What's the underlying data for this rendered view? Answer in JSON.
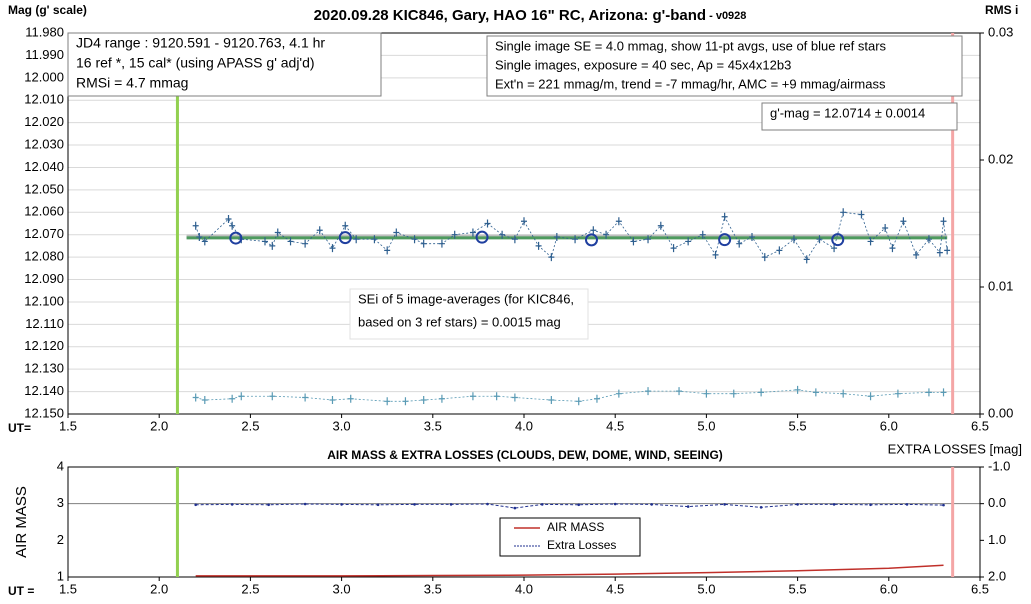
{
  "chart_data": [
    {
      "type": "line",
      "title": "2020.09.28 KIC846, Gary, HAO 16\" RC, Arizona: g'-band",
      "subtitle": " - v0928",
      "ylabel": "Mag (g' scale)",
      "y2label": "RMS i",
      "xlabel": "UT=",
      "xlim": [
        1.5,
        6.5
      ],
      "xticks": [
        1.5,
        {
          "value": 2.0,
          "label": "2.0"
        },
        2.5,
        {
          "value": 3.0,
          "label": "3.0"
        },
        3.5,
        {
          "value": 4.0,
          "label": "4.0"
        },
        4.5,
        {
          "value": 5.0,
          "label": "5.0"
        },
        5.5,
        {
          "value": 6.0,
          "label": "6.0"
        },
        6.5
      ],
      "ylim": [
        12.15,
        11.98
      ],
      "yticks": [
        {
          "value": 11.98,
          "label": "11.980"
        },
        {
          "value": 11.99,
          "label": "11.990"
        },
        {
          "value": 12.0,
          "label": "12.000"
        },
        {
          "value": 12.01,
          "label": "12.010"
        },
        {
          "value": 12.02,
          "label": "12.020"
        },
        {
          "value": 12.03,
          "label": "12.030"
        },
        {
          "value": 12.04,
          "label": "12.040"
        },
        {
          "value": 12.05,
          "label": "12.050"
        },
        {
          "value": 12.06,
          "label": "12.060"
        },
        {
          "value": 12.07,
          "label": "12.070"
        },
        {
          "value": 12.08,
          "label": "12.080"
        },
        {
          "value": 12.09,
          "label": "12.090"
        },
        {
          "value": 12.1,
          "label": "12.100"
        },
        {
          "value": 12.11,
          "label": "12.110"
        },
        {
          "value": 12.12,
          "label": "12.120"
        },
        {
          "value": 12.13,
          "label": "12.130"
        },
        {
          "value": 12.14,
          "label": "12.140"
        },
        {
          "value": 12.15,
          "label": "12.150"
        }
      ],
      "y2lim": [
        0,
        0.03
      ],
      "y2ticks": [
        {
          "value": 0,
          "label": "0.00"
        },
        0.01,
        0.02,
        0.03
      ],
      "grid": true,
      "vlines": [
        {
          "value": 2.1,
          "color": "#92d050"
        },
        {
          "value": 6.35,
          "color": "#f4a6a6"
        }
      ],
      "hlines": [
        {
          "value": 12.0706,
          "color": "#bfbfbf"
        },
        {
          "value": 12.0714,
          "color": "#4e9a5e"
        }
      ],
      "series": [
        {
          "style": "cross-dashed",
          "color": "#2e5f8f",
          "x": [
            2.2,
            2.22,
            2.25,
            2.38,
            2.4,
            2.45,
            2.58,
            2.62,
            2.65,
            2.72,
            2.8,
            2.88,
            2.95,
            3.02,
            3.08,
            3.18,
            3.25,
            3.3,
            3.4,
            3.45,
            3.55,
            3.62,
            3.72,
            3.8,
            3.88,
            3.95,
            4.0,
            4.08,
            4.15,
            4.18,
            4.28,
            4.38,
            4.45,
            4.52,
            4.6,
            4.68,
            4.75,
            4.82,
            4.9,
            4.98,
            5.05,
            5.1,
            5.18,
            5.25,
            5.32,
            5.4,
            5.48,
            5.55,
            5.62,
            5.7,
            5.75,
            5.85,
            5.9,
            5.98,
            6.02,
            6.08,
            6.15,
            6.22,
            6.28,
            6.3,
            6.32
          ],
          "values": [
            12.066,
            12.071,
            12.073,
            12.063,
            12.066,
            12.072,
            12.073,
            12.075,
            12.069,
            12.073,
            12.074,
            12.068,
            12.076,
            12.066,
            12.072,
            12.072,
            12.077,
            12.069,
            12.072,
            12.074,
            12.074,
            12.07,
            12.069,
            12.065,
            12.07,
            12.072,
            12.064,
            12.075,
            12.08,
            12.071,
            12.072,
            12.068,
            12.07,
            12.064,
            12.073,
            12.072,
            12.066,
            12.076,
            12.073,
            12.07,
            12.079,
            12.062,
            12.074,
            12.071,
            12.08,
            12.077,
            12.072,
            12.081,
            12.072,
            12.076,
            12.06,
            12.061,
            12.073,
            12.067,
            12.076,
            12.064,
            12.079,
            12.072,
            12.078,
            12.064,
            12.077
          ]
        },
        {
          "style": "circle",
          "color": "#1f3f9f",
          "x": [
            2.42,
            3.02,
            3.77,
            4.37,
            5.1,
            5.72
          ],
          "values": [
            12.0715,
            12.0713,
            12.0711,
            12.0723,
            12.0722,
            12.0722
          ]
        },
        {
          "style": "cross-dashed",
          "color": "#5a9bb5",
          "axis": "y2",
          "x": [
            2.2,
            2.25,
            2.4,
            2.45,
            2.62,
            2.8,
            2.95,
            3.05,
            3.25,
            3.35,
            3.45,
            3.55,
            3.72,
            3.85,
            3.95,
            4.15,
            4.3,
            4.4,
            4.52,
            4.68,
            4.85,
            5.0,
            5.15,
            5.3,
            5.5,
            5.6,
            5.75,
            5.9,
            6.05,
            6.22,
            6.3
          ],
          "values": [
            0.0013,
            0.0011,
            0.0012,
            0.0014,
            0.0014,
            0.0013,
            0.0011,
            0.0012,
            0.001,
            0.001,
            0.0011,
            0.0012,
            0.0014,
            0.0014,
            0.0013,
            0.0011,
            0.001,
            0.0012,
            0.0016,
            0.0018,
            0.0018,
            0.0016,
            0.0016,
            0.0017,
            0.0019,
            0.0017,
            0.0016,
            0.0014,
            0.0016,
            0.0017,
            0.0017
          ]
        }
      ],
      "annotations": [
        {
          "lines": [
            "JD4 range : 9120.591 - 9120.763,  4.1  hr",
            "16 ref *, 15 cal* (using APASS g' adj'd)",
            "RMSi = 4.7 mmag"
          ]
        },
        {
          "lines": [
            "Single image SE = 4.0 mmag, show  11-pt avgs, use of blue ref stars",
            "Single images, exposure = 40 sec, Ap = 45x4x12b3",
            "Ext'n = 221 mmag/m, trend =  -7 mmag/hr, AMC = +9 mmag/airmass"
          ]
        },
        {
          "lines": [
            "g'-mag = 12.0714 ± 0.0014"
          ]
        },
        {
          "lines": [
            "SEi of 5 image-averages (for KIC846,",
            "based on 3 ref stars) = 0.0015 mag"
          ]
        }
      ]
    },
    {
      "type": "line",
      "title": "AIR MASS & EXTRA LOSSES (CLOUDS, DEW, DOME, WIND, SEEING)",
      "ylabel": "AIR MASS",
      "y2label": "EXTRA LOSSES [mag]",
      "xlabel": "UT =",
      "xlim": [
        1.5,
        6.5
      ],
      "xticks": [
        1.5,
        {
          "value": 2.0,
          "label": "2.0"
        },
        2.5,
        {
          "value": 3.0,
          "label": "3.0"
        },
        3.5,
        {
          "value": 4.0,
          "label": "4.0"
        },
        4.5,
        {
          "value": 5.0,
          "label": "5.0"
        },
        5.5,
        {
          "value": 6.0,
          "label": "6.0"
        },
        6.5
      ],
      "ylim": [
        1,
        4
      ],
      "yticks": [
        1,
        2,
        3,
        4
      ],
      "y2lim": [
        2,
        -1
      ],
      "y2ticks": [
        {
          "value": 2,
          "label": "2.0"
        },
        {
          "value": 1,
          "label": "1.0"
        },
        {
          "value": 0,
          "label": "0.0"
        },
        {
          "value": -1,
          "label": "-1.0"
        }
      ],
      "grid": false,
      "gridlines": [
        3
      ],
      "vlines": [
        {
          "value": 2.1,
          "color": "#92d050"
        },
        {
          "value": 6.35,
          "color": "#f4a6a6"
        }
      ],
      "series": [
        {
          "name": "AIR MASS",
          "style": "line",
          "color": "#c0302a",
          "x": [
            2.2,
            2.5,
            3.0,
            3.5,
            4.0,
            4.5,
            5.0,
            5.5,
            6.0,
            6.3
          ],
          "values": [
            1.03,
            1.03,
            1.03,
            1.04,
            1.05,
            1.08,
            1.12,
            1.17,
            1.24,
            1.32
          ]
        },
        {
          "name": "Extra Losses",
          "style": "dot-dashed",
          "color": "#1f2f8f",
          "axis": "y2",
          "x": [
            2.2,
            2.4,
            2.6,
            2.8,
            3.0,
            3.2,
            3.4,
            3.6,
            3.8,
            3.95,
            4.1,
            4.3,
            4.5,
            4.7,
            4.9,
            5.1,
            5.3,
            5.5,
            5.7,
            5.9,
            6.1,
            6.3
          ],
          "values": [
            0.03,
            0.02,
            0.03,
            0.01,
            0.02,
            0.03,
            0.02,
            0.02,
            0.01,
            0.12,
            0.02,
            0.03,
            0.01,
            0.02,
            0.08,
            0.02,
            0.1,
            0.02,
            0.02,
            0.03,
            0.02,
            0.04
          ]
        }
      ]
    }
  ]
}
